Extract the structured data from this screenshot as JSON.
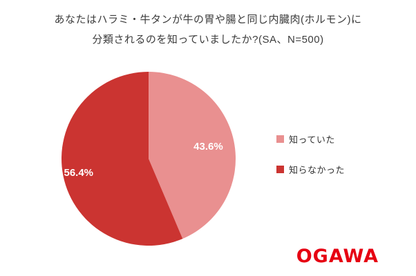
{
  "title": {
    "line1": "あなたはハラミ・牛タンが牛の胃や腸と同じ内臓肉(ホルモン)に",
    "line2": "分類されるのを知っていましたか?(SA、N=500)"
  },
  "chart_data": {
    "type": "pie",
    "title": "あなたはハラミ・牛タンが牛の胃や腸と同じ内臓肉(ホルモン)に分類されるのを知っていましたか?(SA、N=500)",
    "n": 500,
    "labels": [
      "知っていた",
      "知らなかった"
    ],
    "values": [
      43.6,
      56.4
    ],
    "value_labels": [
      "43.6%",
      "56.4%"
    ],
    "colors": [
      "#E99090",
      "#CB3431"
    ],
    "start_angle_deg": 0,
    "direction": "clockwise",
    "legend_position": "right",
    "label_radius": [
      0.7,
      0.82
    ]
  },
  "logo": {
    "text": "OGAWA",
    "color": "#E60012"
  }
}
